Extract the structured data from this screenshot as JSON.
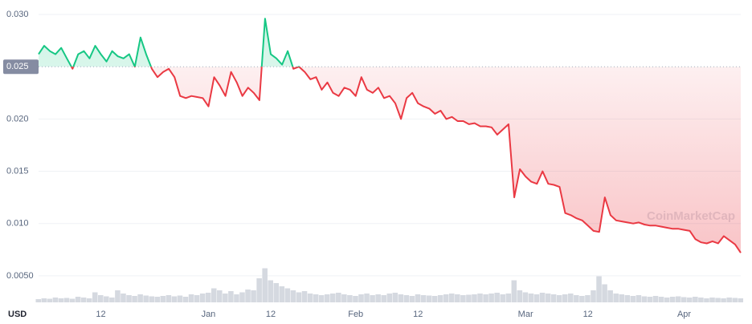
{
  "chart_data": {
    "type": "line",
    "currency": "USD",
    "watermark": "CoinMarketCap",
    "baseline": 0.025,
    "ylim": [
      0.0025,
      0.031
    ],
    "yticks": [
      {
        "value": 0.005,
        "label": "0.0050"
      },
      {
        "value": 0.01,
        "label": "0.010"
      },
      {
        "value": 0.015,
        "label": "0.015"
      },
      {
        "value": 0.02,
        "label": "0.020"
      },
      {
        "value": 0.025,
        "label": "0.025"
      },
      {
        "value": 0.03,
        "label": "0.030"
      }
    ],
    "grid": true,
    "categories": [
      null,
      null,
      null,
      null,
      null,
      null,
      null,
      null,
      null,
      null,
      null,
      "12",
      null,
      null,
      null,
      null,
      null,
      null,
      null,
      null,
      null,
      null,
      null,
      null,
      null,
      null,
      null,
      null,
      null,
      null,
      "Jan",
      null,
      null,
      null,
      null,
      null,
      null,
      null,
      null,
      null,
      null,
      "12",
      null,
      null,
      null,
      null,
      null,
      null,
      null,
      null,
      null,
      null,
      null,
      null,
      null,
      null,
      "Feb",
      null,
      null,
      null,
      null,
      null,
      null,
      null,
      null,
      null,
      null,
      "12",
      null,
      null,
      null,
      null,
      null,
      null,
      null,
      null,
      null,
      null,
      null,
      null,
      null,
      null,
      null,
      null,
      null,
      null,
      "Mar",
      null,
      null,
      null,
      null,
      null,
      null,
      null,
      null,
      null,
      null,
      "12",
      null,
      null,
      null,
      null,
      null,
      null,
      null,
      null,
      null,
      null,
      null,
      null,
      null,
      null,
      null,
      null,
      "Apr",
      null,
      null,
      null,
      null,
      null,
      null,
      null,
      null,
      null,
      null
    ],
    "up_color": "#16c784",
    "down_color": "#ea3943",
    "volume_color": "#d5d9e0",
    "values": [
      0.0262,
      0.027,
      0.0265,
      0.0262,
      0.0268,
      0.0258,
      0.0248,
      0.0262,
      0.0265,
      0.0258,
      0.027,
      0.0262,
      0.0255,
      0.0265,
      0.026,
      0.0258,
      0.0262,
      0.025,
      0.0278,
      0.0262,
      0.0248,
      0.024,
      0.0245,
      0.0248,
      0.024,
      0.0222,
      0.022,
      0.0222,
      0.0221,
      0.022,
      0.0212,
      0.024,
      0.0232,
      0.0222,
      0.0245,
      0.0235,
      0.0222,
      0.023,
      0.0225,
      0.0218,
      0.0296,
      0.0262,
      0.0258,
      0.0252,
      0.0265,
      0.0248,
      0.025,
      0.0245,
      0.0238,
      0.024,
      0.0228,
      0.0235,
      0.0225,
      0.0222,
      0.023,
      0.0228,
      0.0222,
      0.024,
      0.0228,
      0.0225,
      0.023,
      0.022,
      0.0222,
      0.0215,
      0.02,
      0.022,
      0.0225,
      0.0215,
      0.0212,
      0.021,
      0.0205,
      0.0208,
      0.02,
      0.0202,
      0.0198,
      0.0198,
      0.0195,
      0.0196,
      0.0193,
      0.0193,
      0.0192,
      0.0185,
      0.019,
      0.0195,
      0.0125,
      0.0152,
      0.0145,
      0.014,
      0.0138,
      0.015,
      0.0138,
      0.0137,
      0.0135,
      0.011,
      0.0108,
      0.0105,
      0.0103,
      0.0098,
      0.0093,
      0.0092,
      0.0125,
      0.0108,
      0.0103,
      0.0102,
      0.0101,
      0.01,
      0.0101,
      0.0099,
      0.0098,
      0.0098,
      0.0097,
      0.0096,
      0.0095,
      0.0095,
      0.0094,
      0.0093,
      0.0085,
      0.0082,
      0.0081,
      0.0083,
      0.0081,
      0.0088,
      0.0084,
      0.008,
      0.0072
    ],
    "volume": [
      8,
      10,
      9,
      12,
      10,
      11,
      9,
      14,
      12,
      10,
      25,
      18,
      15,
      12,
      30,
      22,
      18,
      16,
      20,
      17,
      15,
      14,
      16,
      18,
      15,
      17,
      14,
      20,
      18,
      22,
      24,
      35,
      30,
      22,
      28,
      20,
      25,
      32,
      30,
      60,
      85,
      55,
      48,
      40,
      35,
      30,
      25,
      28,
      22,
      20,
      18,
      20,
      22,
      24,
      20,
      18,
      16,
      20,
      22,
      18,
      20,
      18,
      22,
      24,
      20,
      18,
      16,
      20,
      18,
      17,
      16,
      18,
      20,
      22,
      20,
      18,
      19,
      20,
      22,
      20,
      22,
      24,
      20,
      22,
      55,
      30,
      25,
      22,
      20,
      24,
      22,
      20,
      18,
      20,
      22,
      18,
      16,
      18,
      30,
      65,
      45,
      30,
      22,
      20,
      18,
      16,
      18,
      15,
      14,
      16,
      14,
      12,
      14,
      15,
      13,
      12,
      14,
      12,
      10,
      12,
      11,
      10,
      12,
      11,
      10
    ]
  }
}
